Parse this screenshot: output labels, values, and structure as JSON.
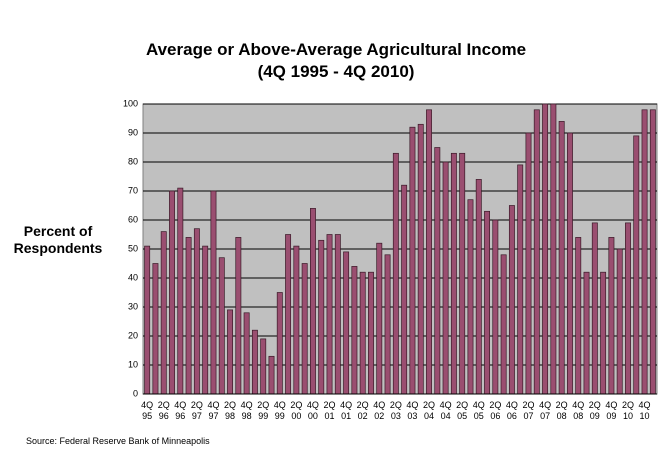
{
  "chart_data": {
    "type": "bar",
    "title": "Average or Above-Average Agricultural Income",
    "subtitle": "(4Q 1995 - 4Q 2010)",
    "y_label": "Percent of Respondents",
    "source": "Source: Federal Reserve Bank of Minneapolis",
    "categories": [
      "4Q 95",
      null,
      "2Q 96",
      null,
      "4Q 96",
      null,
      "2Q 97",
      null,
      "4Q 97",
      null,
      "2Q 98",
      null,
      "4Q 98",
      null,
      "2Q 99",
      null,
      "4Q 99",
      null,
      "2Q 00",
      null,
      "4Q 00",
      null,
      "2Q 01",
      null,
      "4Q 01",
      null,
      "2Q 02",
      null,
      "4Q 02",
      null,
      "2Q 03",
      null,
      "4Q 03",
      null,
      "2Q 04",
      null,
      "4Q 04",
      null,
      "2Q 05",
      null,
      "4Q 05",
      null,
      "2Q 06",
      null,
      "4Q 06",
      null,
      "2Q 07",
      null,
      "4Q 07",
      null,
      "2Q 08",
      null,
      "4Q 08",
      null,
      "2Q 09",
      null,
      "4Q 09",
      null,
      "2Q 10",
      null,
      "4Q 10",
      null
    ],
    "values": [
      51,
      45,
      56,
      70,
      71,
      54,
      57,
      51,
      70,
      47,
      29,
      54,
      28,
      22,
      19,
      13,
      35,
      55,
      51,
      45,
      64,
      53,
      55,
      55,
      49,
      44,
      42,
      42,
      52,
      48,
      83,
      72,
      92,
      93,
      98,
      85,
      80,
      83,
      83,
      67,
      74,
      63,
      60,
      48,
      65,
      79,
      90,
      98,
      100,
      100,
      94,
      90,
      54,
      42,
      59,
      42,
      54,
      50,
      59,
      89,
      98,
      98
    ],
    "color": "#9a4e70",
    "ylim": [
      0,
      100
    ],
    "yticks": [
      0,
      10,
      20,
      30,
      40,
      50,
      60,
      70,
      80,
      90,
      100
    ],
    "grid": true
  }
}
